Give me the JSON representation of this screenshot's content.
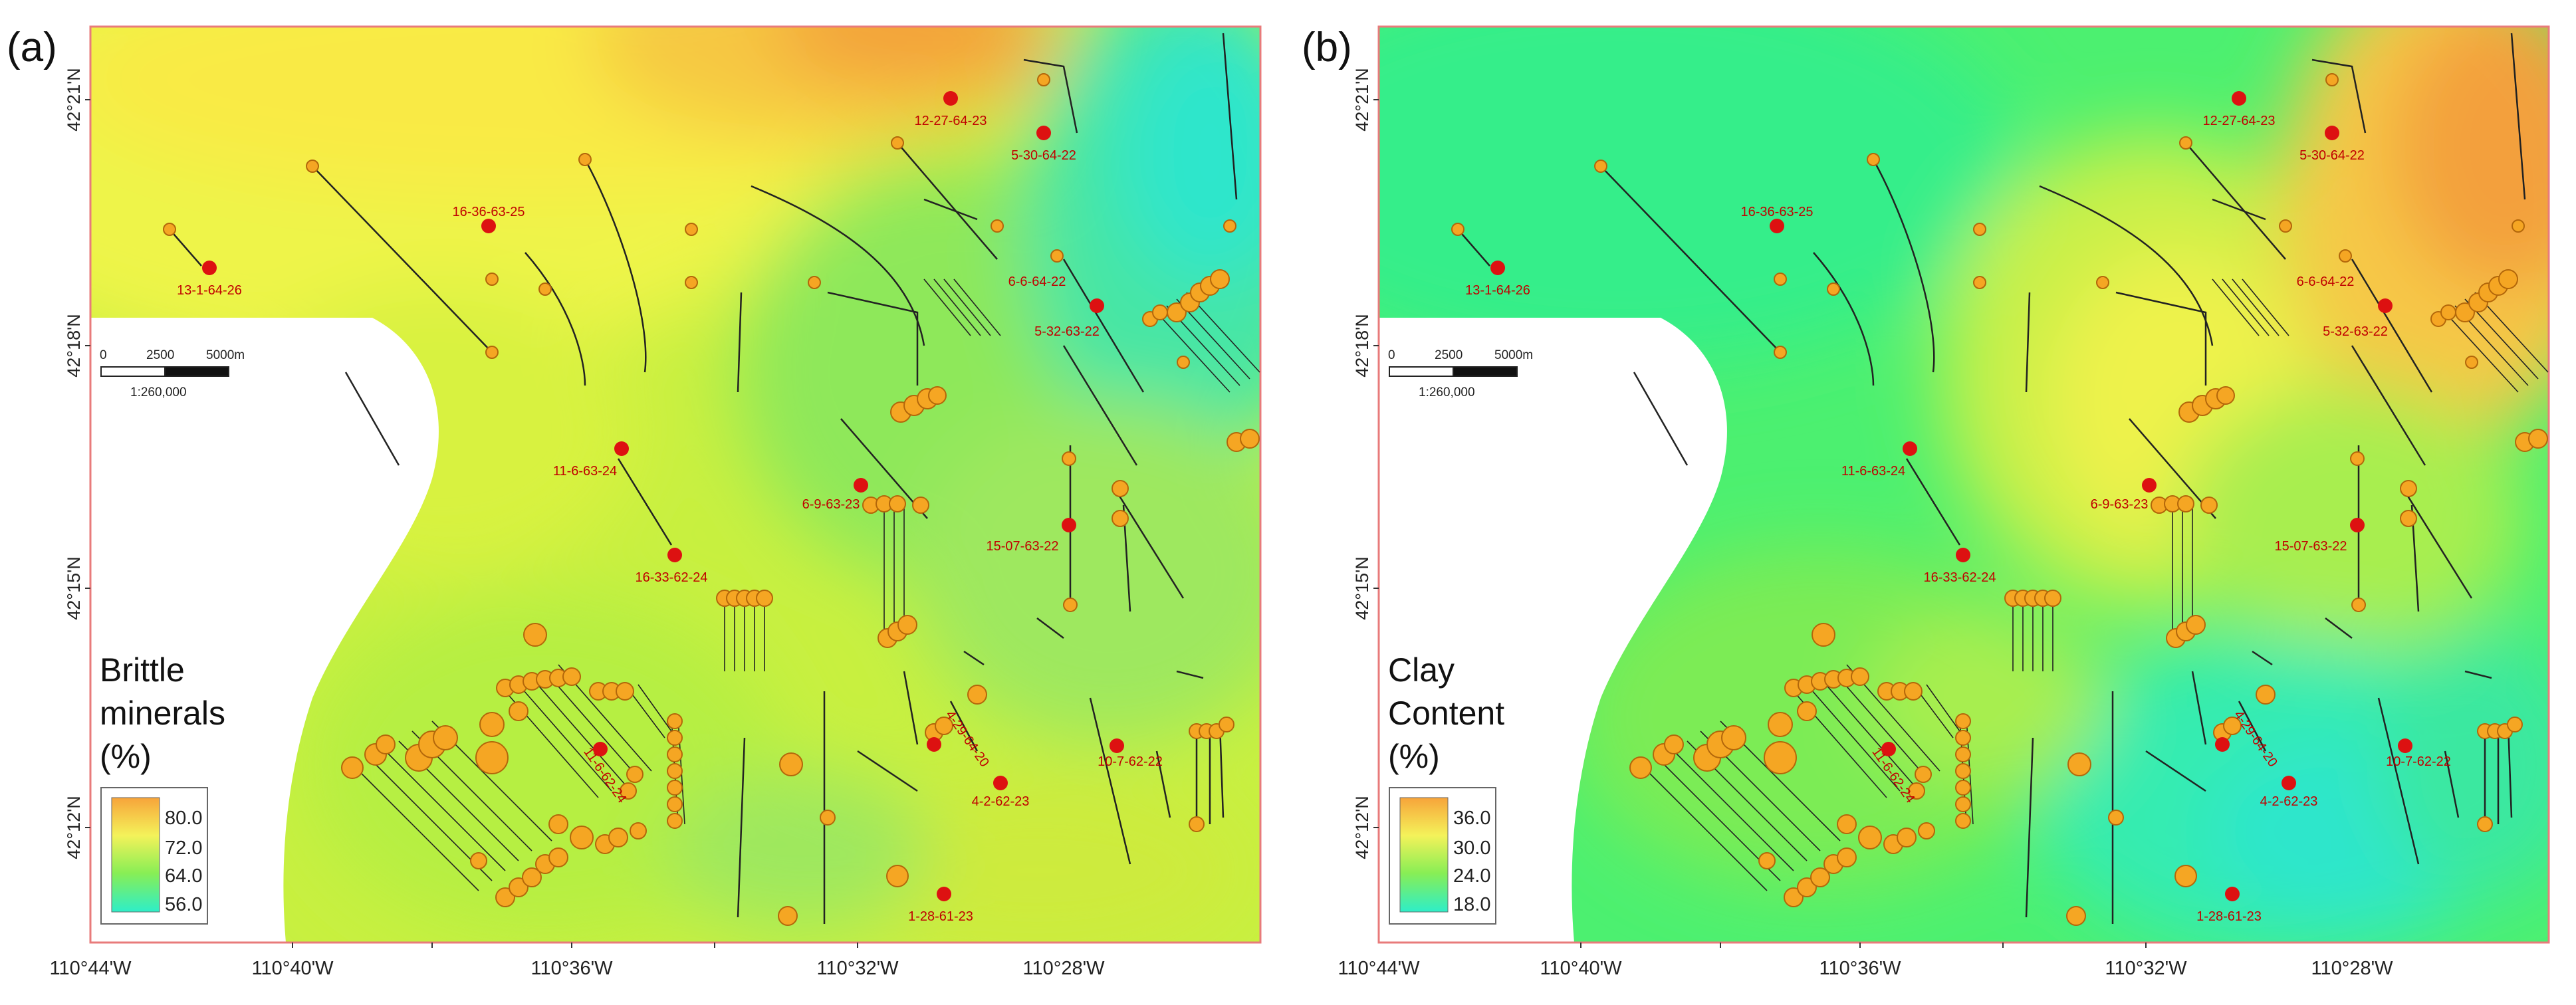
{
  "panel_a": {
    "label": "(a)",
    "legend": {
      "title_line1": "Brittle",
      "title_line2": "minerals",
      "title_line3": "(%)",
      "ticks": [
        "80.0",
        "72.0",
        "64.0",
        "56.0"
      ]
    }
  },
  "panel_b": {
    "label": "(b)",
    "legend": {
      "title_line1": "Clay",
      "title_line2": "Content",
      "title_line3": "(%)",
      "ticks": [
        "36.0",
        "30.0",
        "24.0",
        "18.0"
      ]
    }
  },
  "latitude_labels": [
    "42°21'N",
    "42°18'N",
    "42°15'N",
    "42°12'N"
  ],
  "longitude_labels": [
    "110°44'W",
    "110°40'W",
    "110°36'W",
    "110°32'W",
    "110°28'W"
  ],
  "scale_bar": {
    "ticks": [
      "0",
      "2500",
      "5000m"
    ],
    "ratio": "1:260,000"
  },
  "wells": [
    "12-27-64-23",
    "5-30-64-22",
    "16-36-63-25",
    "13-1-64-26",
    "6-6-64-22",
    "5-32-63-22",
    "11-6-63-24",
    "6-9-63-23",
    "15-07-63-22",
    "16-33-62-24",
    "4-29-64-20",
    "10-7-62-22",
    "4-2-62-23",
    "11-6-62-24",
    "1-28-61-23"
  ],
  "colors": {
    "frame": "#e87b7b",
    "well_dot": "#dd1111",
    "well_text": "#c00000",
    "pad_circle": "#f5a623",
    "pad_stroke": "#b3670a",
    "trajectory": "#222222",
    "void": "#ffffff"
  }
}
